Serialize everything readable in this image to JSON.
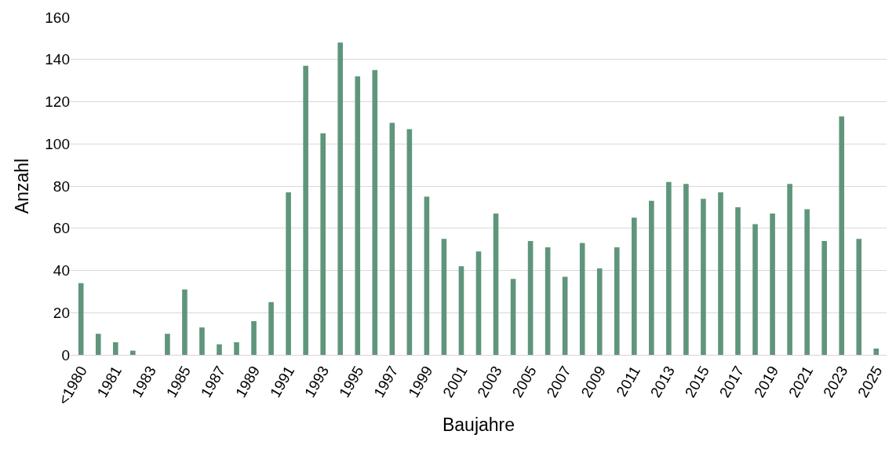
{
  "chart_data": {
    "type": "bar",
    "xlabel": "Baujahre",
    "ylabel": "Anzahl",
    "categories": [
      "<1980",
      null,
      "1981",
      null,
      "1983",
      null,
      "1985",
      null,
      "1987",
      null,
      "1989",
      null,
      "1991",
      null,
      "1993",
      null,
      "1995",
      null,
      "1997",
      null,
      "1999",
      null,
      "2001",
      null,
      "2003",
      null,
      "2005",
      null,
      "2007",
      null,
      "2009",
      null,
      "2011",
      null,
      "2013",
      null,
      "2015",
      null,
      "2017",
      null,
      "2019",
      null,
      "2021",
      null,
      "2023",
      null,
      "2025"
    ],
    "values": [
      34,
      10,
      6,
      2,
      0,
      10,
      31,
      13,
      5,
      6,
      16,
      25,
      77,
      137,
      105,
      148,
      132,
      135,
      110,
      107,
      75,
      55,
      42,
      49,
      67,
      36,
      54,
      51,
      37,
      53,
      41,
      51,
      65,
      73,
      82,
      81,
      74,
      77,
      70,
      62,
      67,
      81,
      69,
      54,
      113,
      55,
      3
    ],
    "color": "#5f967b",
    "ylim": [
      0,
      160
    ],
    "yticks": [
      0,
      20,
      40,
      60,
      80,
      100,
      120,
      140,
      160
    ],
    "grid": "y"
  }
}
